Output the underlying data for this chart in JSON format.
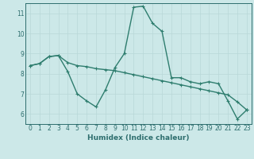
{
  "line1_x": [
    0,
    1,
    2,
    3,
    4,
    5,
    6,
    7,
    8,
    9,
    10,
    11,
    12,
    13,
    14,
    15,
    16,
    17,
    18,
    19,
    20,
    21,
    22,
    23
  ],
  "line1_y": [
    8.4,
    8.5,
    8.85,
    8.9,
    8.1,
    7.0,
    6.65,
    6.35,
    7.2,
    8.3,
    9.0,
    11.3,
    11.35,
    10.5,
    10.1,
    7.8,
    7.8,
    7.6,
    7.5,
    7.6,
    7.5,
    6.65,
    5.75,
    6.2
  ],
  "line2_x": [
    0,
    1,
    2,
    3,
    4,
    5,
    6,
    7,
    8,
    9,
    10,
    11,
    12,
    13,
    14,
    15,
    16,
    17,
    18,
    19,
    20,
    21,
    22,
    23
  ],
  "line2_y": [
    8.4,
    8.5,
    8.85,
    8.9,
    8.55,
    8.4,
    8.35,
    8.25,
    8.2,
    8.15,
    8.05,
    7.95,
    7.85,
    7.75,
    7.65,
    7.55,
    7.45,
    7.35,
    7.25,
    7.15,
    7.05,
    6.95,
    6.6,
    6.2
  ],
  "line_color": "#2e7d6e",
  "bg_color": "#cce8e8",
  "grid_color": "#b8d8d8",
  "xlabel": "Humidex (Indice chaleur)",
  "ylim": [
    5.5,
    11.5
  ],
  "xlim": [
    -0.5,
    23.5
  ],
  "yticks": [
    6,
    7,
    8,
    9,
    10,
    11
  ],
  "xticks": [
    0,
    1,
    2,
    3,
    4,
    5,
    6,
    7,
    8,
    9,
    10,
    11,
    12,
    13,
    14,
    15,
    16,
    17,
    18,
    19,
    20,
    21,
    22,
    23
  ],
  "marker": "+",
  "marker_size": 3.5,
  "line_width": 1.0,
  "font_color": "#2e6e6e",
  "label_fontsize": 6.5,
  "tick_fontsize": 5.5
}
